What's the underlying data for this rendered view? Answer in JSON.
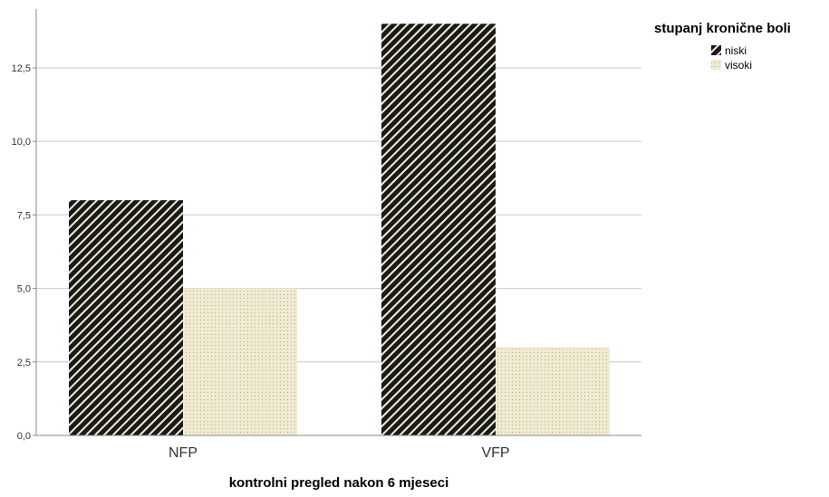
{
  "chart_data": {
    "type": "bar",
    "categories": [
      "NFP",
      "VFP"
    ],
    "series": [
      {
        "name": "niski",
        "values": [
          8,
          14
        ],
        "pattern": "diagonal-stripes",
        "colors": [
          "#1a1a1a",
          "#f2ecd6"
        ]
      },
      {
        "name": "visoki",
        "values": [
          5,
          3
        ],
        "pattern": "dots",
        "colors": [
          "#f0ead2",
          "#b8a982"
        ]
      }
    ],
    "xlabel": "kontrolni pregled nakon 6 mjeseci",
    "ylabel": "",
    "ylim": [
      0,
      14.5
    ],
    "yticks": [
      "0,0",
      "2,5",
      "5,0",
      "7,5",
      "10,0",
      "12,5"
    ],
    "ytick_values": [
      0,
      2.5,
      5,
      7.5,
      10,
      12.5
    ],
    "grid": true,
    "legend": {
      "title": "stupanj kronične boli",
      "position": "top-right"
    }
  }
}
